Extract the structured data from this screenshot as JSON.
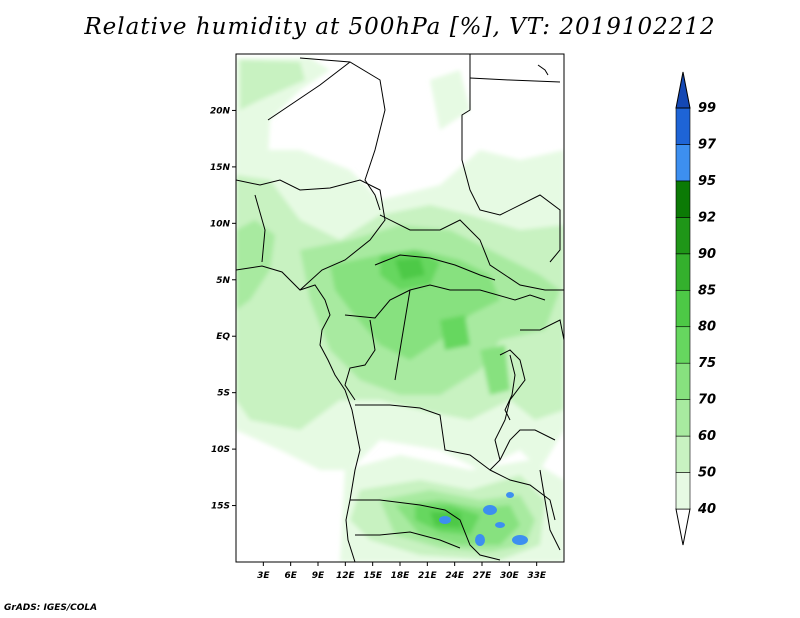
{
  "title": "Relative humidity at 500hPa [%], VT: 2019102212",
  "credit": "GrADS: IGES/COLA",
  "map": {
    "lon_range": [
      0,
      36
    ],
    "lat_range": [
      -20,
      25
    ],
    "lon_ticks": [
      "3E",
      "6E",
      "9E",
      "12E",
      "15E",
      "18E",
      "21E",
      "24E",
      "27E",
      "30E",
      "33E"
    ],
    "lat_ticks": [
      "20N",
      "15N",
      "10N",
      "5N",
      "EQ",
      "5S",
      "10S",
      "15S"
    ]
  },
  "colorbar": {
    "levels": [
      "40",
      "50",
      "60",
      "70",
      "75",
      "80",
      "85",
      "90",
      "92",
      "95",
      "97",
      "99"
    ],
    "colors": [
      "#ffffff",
      "#e6fae3",
      "#c8f2c1",
      "#a8eaa0",
      "#87e17f",
      "#66d75f",
      "#4dc946",
      "#34b02d",
      "#1f9618",
      "#0b7a05",
      "#3d8ff0",
      "#1e64d6",
      "#1448b4"
    ]
  }
}
